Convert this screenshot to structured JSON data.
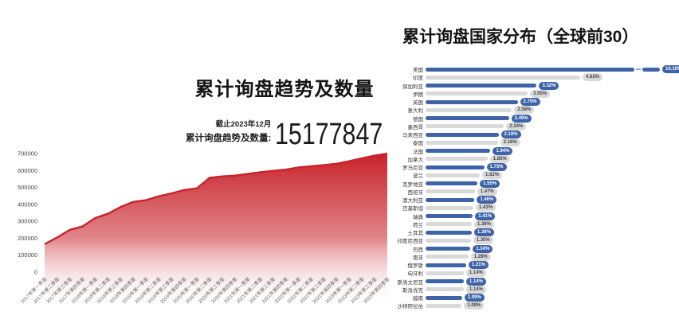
{
  "left_panel": {
    "title": "累计询盘趋势及数量",
    "asof_label": "截止2023年12月",
    "total_label": "累计询盘趋势及数量:",
    "total_value": "15177847"
  },
  "right_panel": {
    "title": "累计询盘国家分布（全球前30）"
  },
  "colors": {
    "area_red": "#c8232b",
    "area_red_light": "#e9b6b3",
    "bar_blue": "#3e63a8",
    "bar_gray": "#d9d9d9",
    "badge_text_dark": "#444444"
  },
  "chart_data": [
    {
      "type": "area",
      "title": "累计询盘趋势及数量",
      "xlabel": "",
      "ylabel": "",
      "ylim": [
        0,
        700000
      ],
      "yticks": [
        0,
        100000,
        200000,
        300000,
        400000,
        500000,
        600000,
        700000
      ],
      "grid": false,
      "legend": "none",
      "annotation": "截止2023年12月 累计询盘趋势及数量: 15177847",
      "x": [
        "2017年第一季度",
        "2017年第二季度",
        "2017年第三季度",
        "2017年第四季度",
        "2018年第一季度",
        "2018年第二季度",
        "2018年第三季度",
        "2018年第四季度",
        "2019年第一季度",
        "2019年第二季度",
        "2019年第三季度",
        "2019年第四季度",
        "2020年第一季度",
        "2020年第二季度",
        "2020年第三季度",
        "2020年第四季度",
        "2021年第一季度",
        "2021年第二季度",
        "2021年第三季度",
        "2021年第四季度",
        "2022年第一季度",
        "2022年第二季度",
        "2022年第三季度",
        "2022年第四季度",
        "2023年第一季度",
        "2023年第二季度",
        "2023年第三季度",
        "2023年第四季度"
      ],
      "values": [
        165000,
        205000,
        250000,
        270000,
        320000,
        345000,
        385000,
        415000,
        425000,
        448000,
        465000,
        485000,
        495000,
        557000,
        565000,
        570000,
        580000,
        590000,
        598000,
        605000,
        618000,
        625000,
        632000,
        640000,
        655000,
        672000,
        688000,
        700000
      ]
    },
    {
      "type": "bar",
      "orientation": "horizontal",
      "title": "累计询盘国家分布（全球前30）",
      "unit": "%",
      "legend": "none",
      "axis_break_on_first_bar": true,
      "categories": [
        "美国",
        "印度",
        "保加利亚",
        "伊朗",
        "英国",
        "意大利",
        "德国",
        "墨西哥",
        "马来西亚",
        "泰国",
        "法国",
        "加拿大",
        "罗马尼亚",
        "波兰",
        "克罗地亚",
        "西班牙",
        "澳大利亚",
        "巴基斯坦",
        "瑞典",
        "荷兰",
        "土耳其",
        "印度尼西亚",
        "巴西",
        "南非",
        "俄罗斯",
        "匈牙利",
        "斯洛文尼亚",
        "斯洛伐克",
        "越南",
        "沙特阿拉伯"
      ],
      "values": [
        10.19,
        4.62,
        3.32,
        3.05,
        2.75,
        2.58,
        2.49,
        2.34,
        2.18,
        2.16,
        1.94,
        1.85,
        1.75,
        1.62,
        1.55,
        1.47,
        1.46,
        1.43,
        1.41,
        1.38,
        1.38,
        1.35,
        1.34,
        1.28,
        1.21,
        1.14,
        1.14,
        1.14,
        1.09,
        1.08
      ]
    }
  ]
}
